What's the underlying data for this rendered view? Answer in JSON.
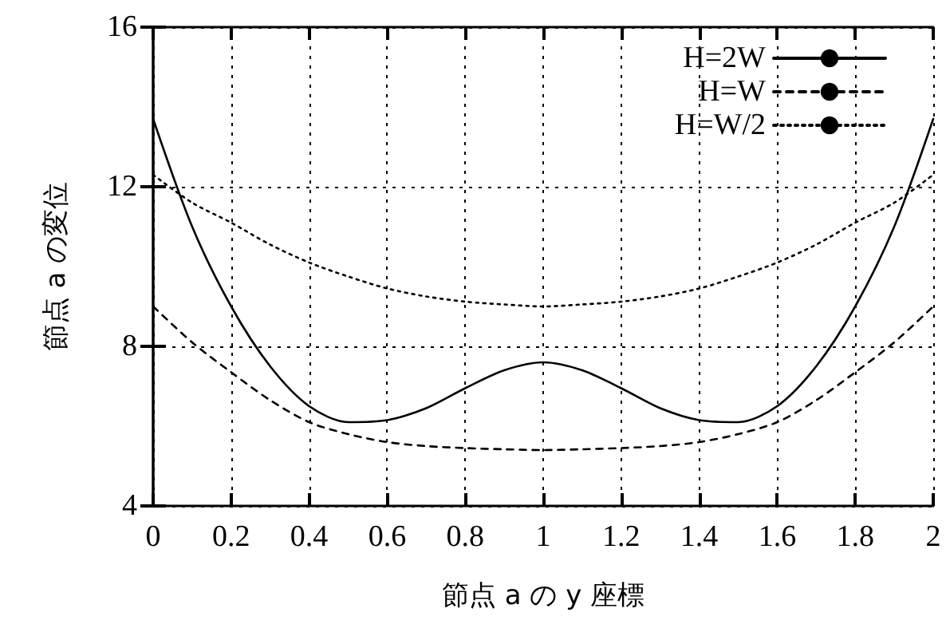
{
  "chart_data": {
    "type": "line",
    "xlabel": "節点 a の y 座標",
    "ylabel": "節点 a の変位",
    "x": [
      0,
      0.1,
      0.2,
      0.3,
      0.4,
      0.5,
      0.6,
      0.7,
      0.8,
      0.9,
      1.0,
      1.1,
      1.2,
      1.3,
      1.4,
      1.5,
      1.6,
      1.7,
      1.8,
      1.9,
      2.0
    ],
    "series": [
      {
        "name": "H=2W",
        "color": "#000000",
        "line_style": "solid",
        "values": [
          13.7,
          11.0,
          9.0,
          7.5,
          6.5,
          6.1,
          6.15,
          6.45,
          6.95,
          7.4,
          7.6,
          7.4,
          6.95,
          6.45,
          6.15,
          6.1,
          6.5,
          7.5,
          9.0,
          11.0,
          13.7
        ]
      },
      {
        "name": "H=W",
        "color": "#000000",
        "line_style": "dashed",
        "values": [
          9.0,
          8.1,
          7.35,
          6.65,
          6.1,
          5.8,
          5.6,
          5.5,
          5.45,
          5.42,
          5.4,
          5.42,
          5.45,
          5.5,
          5.6,
          5.8,
          6.1,
          6.65,
          7.35,
          8.1,
          9.0
        ]
      },
      {
        "name": "H=W/2",
        "color": "#000000",
        "line_style": "dotted",
        "values": [
          12.3,
          11.6,
          11.1,
          10.55,
          10.1,
          9.75,
          9.45,
          9.25,
          9.12,
          9.05,
          9.0,
          9.05,
          9.12,
          9.25,
          9.45,
          9.75,
          10.1,
          10.55,
          11.1,
          11.6,
          12.3
        ]
      }
    ],
    "xlim": [
      0,
      2
    ],
    "xticks": [
      0,
      0.2,
      0.4,
      0.6,
      0.8,
      1,
      1.2,
      1.4,
      1.6,
      1.8,
      2
    ],
    "ylim": [
      4,
      16
    ],
    "yticks": [
      4,
      8,
      12,
      16
    ],
    "grid": true,
    "legend": "top right",
    "marker": "none"
  }
}
